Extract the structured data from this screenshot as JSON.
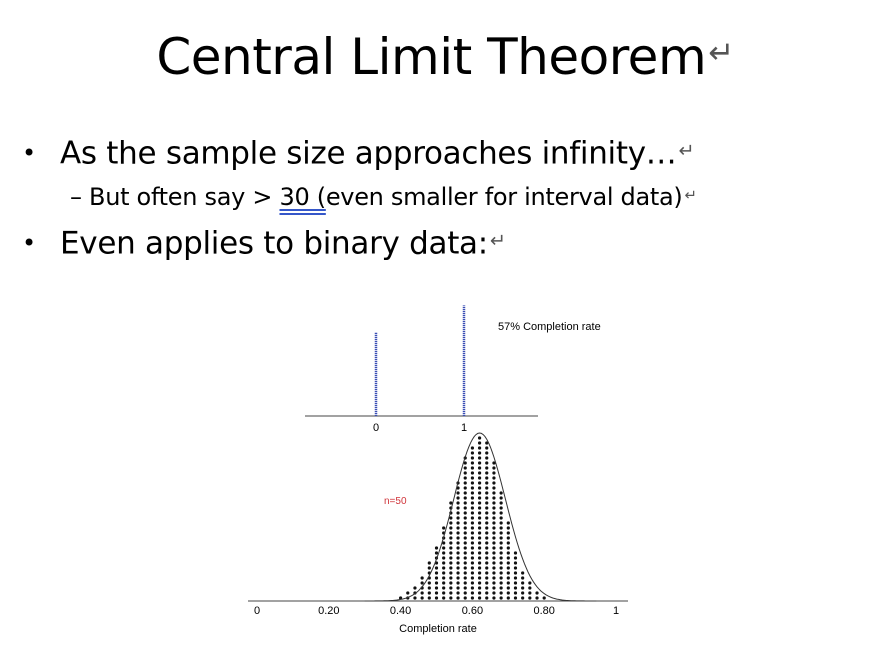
{
  "slide": {
    "title": "Central Limit Theorem",
    "return_mark": "↵",
    "bullets": [
      {
        "text": "As the sample size approaches infinity…"
      },
      {
        "text": "Even applies to binary data:"
      }
    ],
    "sub_bullet": {
      "dash": "–",
      "pre": "But often say > ",
      "underlined": "30  (",
      "post": "even smaller for interval data)"
    },
    "bullet_char": "•"
  },
  "chart_data": [
    {
      "type": "bar",
      "annotation": "57% Completion rate",
      "categories": [
        "0",
        "1"
      ],
      "values": [
        0.43,
        0.57
      ],
      "bar_color": "#3a4fb5"
    },
    {
      "type": "scatter",
      "subtype": "dot histogram with normal curve",
      "annotation": "n=50",
      "annotation_color": "#d0343a",
      "xlabel": "Completion rate",
      "x_ticks": [
        "0",
        "0.20",
        "0.40",
        "0.60",
        "0.80",
        "1"
      ],
      "xlim": [
        0,
        1
      ],
      "bins": [
        {
          "x": 0.4,
          "count": 1
        },
        {
          "x": 0.42,
          "count": 2
        },
        {
          "x": 0.44,
          "count": 3
        },
        {
          "x": 0.46,
          "count": 5
        },
        {
          "x": 0.48,
          "count": 8
        },
        {
          "x": 0.5,
          "count": 11
        },
        {
          "x": 0.52,
          "count": 15
        },
        {
          "x": 0.54,
          "count": 20
        },
        {
          "x": 0.56,
          "count": 24
        },
        {
          "x": 0.58,
          "count": 29
        },
        {
          "x": 0.6,
          "count": 31
        },
        {
          "x": 0.62,
          "count": 33
        },
        {
          "x": 0.64,
          "count": 32
        },
        {
          "x": 0.66,
          "count": 28
        },
        {
          "x": 0.68,
          "count": 22
        },
        {
          "x": 0.7,
          "count": 16
        },
        {
          "x": 0.72,
          "count": 10
        },
        {
          "x": 0.74,
          "count": 6
        },
        {
          "x": 0.76,
          "count": 4
        },
        {
          "x": 0.78,
          "count": 2
        },
        {
          "x": 0.8,
          "count": 1
        }
      ],
      "curve": {
        "mean": 0.62,
        "sd": 0.072
      }
    }
  ]
}
